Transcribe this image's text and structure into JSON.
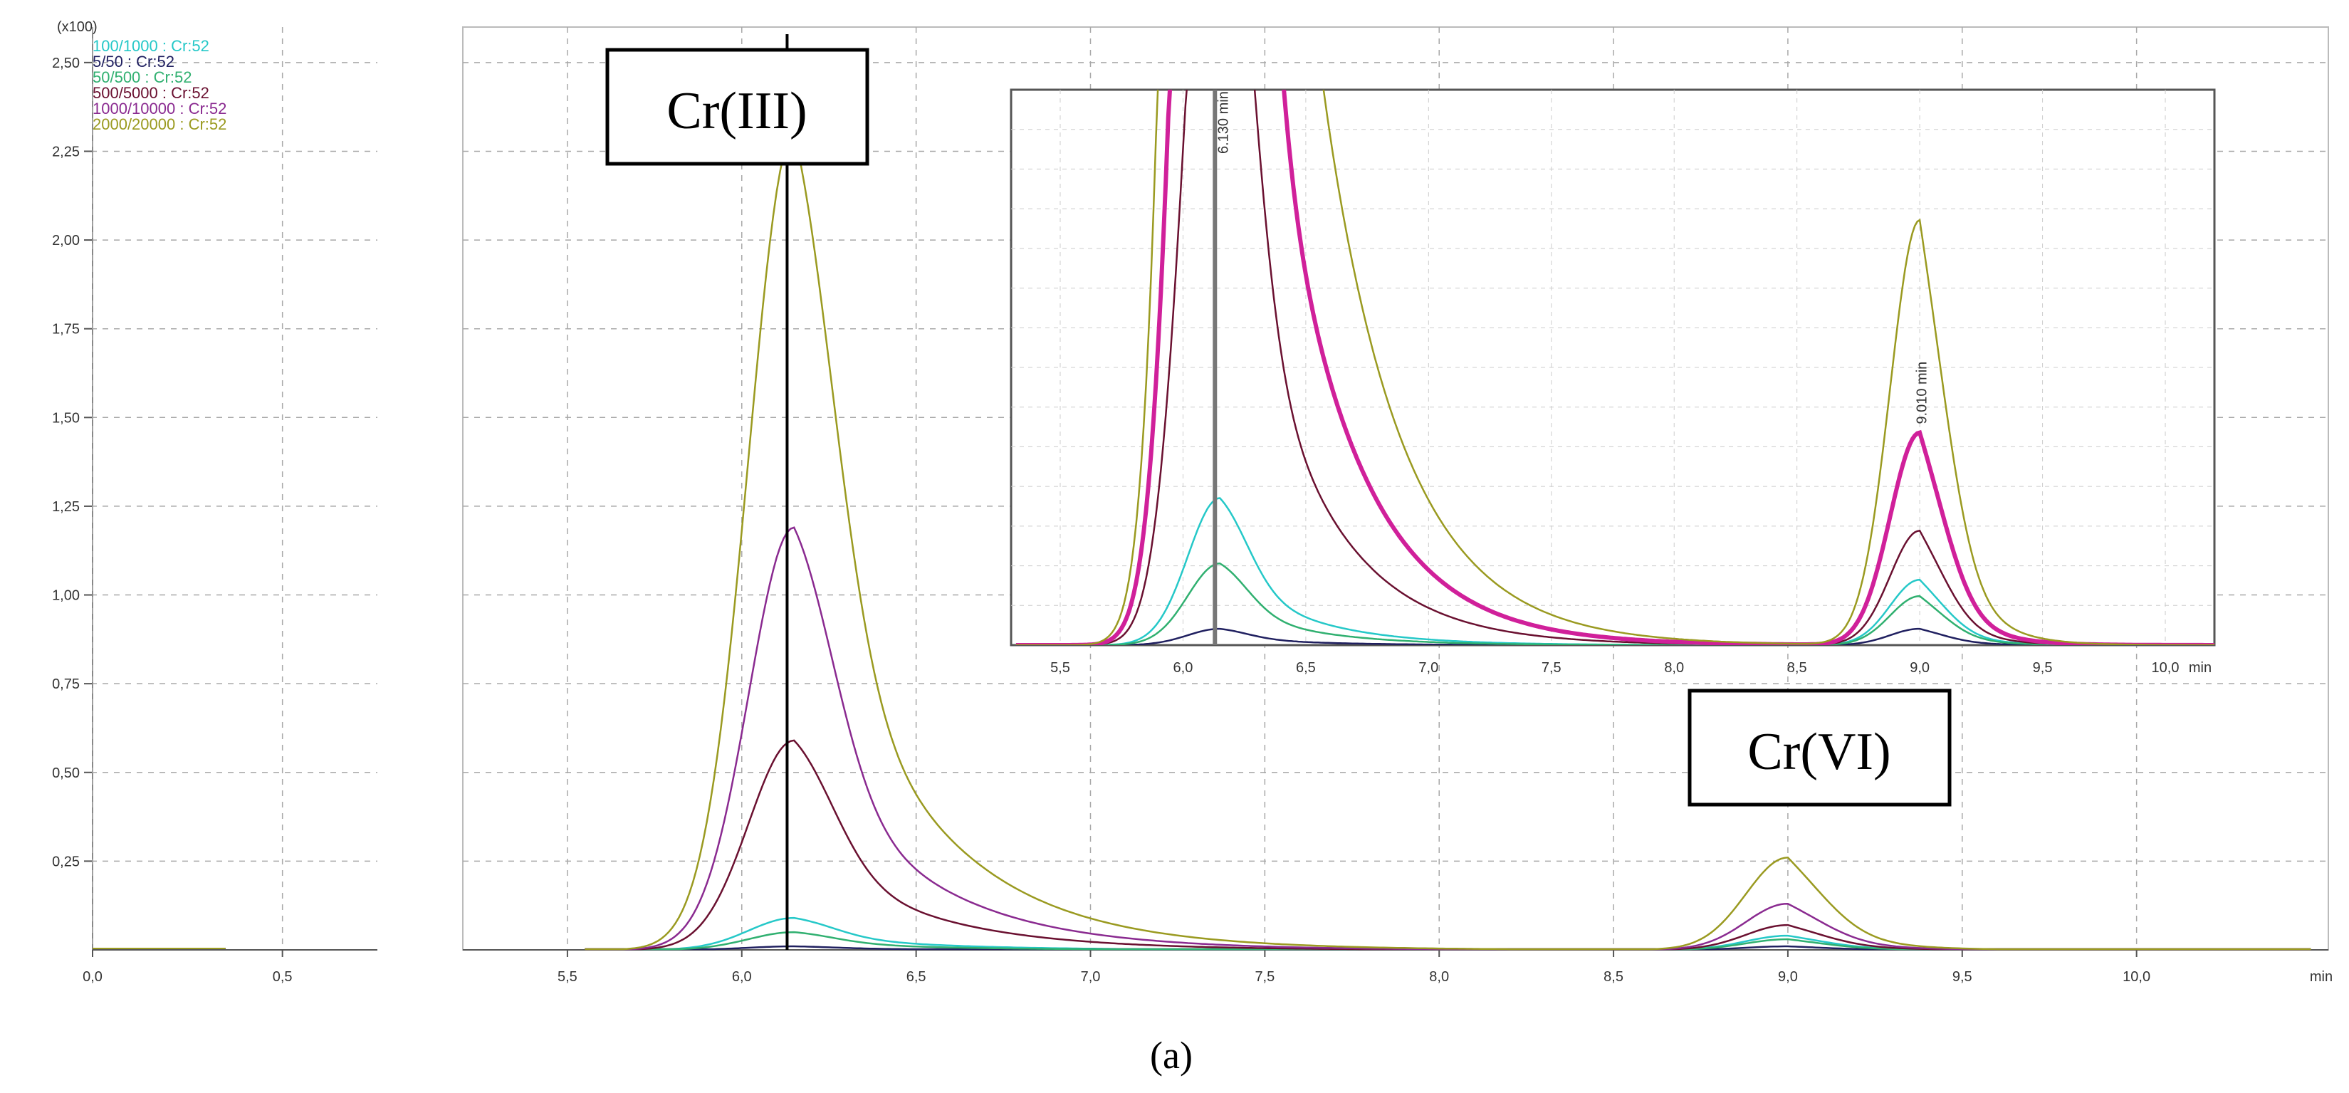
{
  "chart_data": {
    "type": "line",
    "caption": "(a)",
    "y_multiplier_label": "(x100)",
    "xlabel": "min",
    "ylabel": "",
    "left_panel": {
      "xlim": [
        0.0,
        0.75
      ],
      "xticks": [
        "0,0",
        "0,5"
      ],
      "xtick_values": [
        0.0,
        0.5
      ]
    },
    "xlim": [
      5.2,
      10.55
    ],
    "ylim": [
      0,
      2.6
    ],
    "xticks": [
      "5,5",
      "6,0",
      "6,5",
      "7,0",
      "7,5",
      "8,0",
      "8,5",
      "9,0",
      "9,5",
      "10,0"
    ],
    "xtick_values": [
      5.5,
      6.0,
      6.5,
      7.0,
      7.5,
      8.0,
      8.5,
      9.0,
      9.5,
      10.0
    ],
    "yticks": [
      "0,25",
      "0,50",
      "0,75",
      "1,00",
      "1,25",
      "1,50",
      "1,75",
      "2,00",
      "2,25",
      "2,50"
    ],
    "ytick_values": [
      0.25,
      0.5,
      0.75,
      1.0,
      1.25,
      1.5,
      1.75,
      2.0,
      2.25,
      2.5
    ],
    "grid": true,
    "legend_position": "top-left",
    "series": [
      {
        "name": "100/1000 : Cr:52",
        "color": "#25c8c8",
        "peak1": 0.09,
        "peak2": 0.04
      },
      {
        "name": "5/50 : Cr:52",
        "color": "#202060",
        "peak1": 0.01,
        "peak2": 0.01
      },
      {
        "name": "50/500 : Cr:52",
        "color": "#30b070",
        "peak1": 0.05,
        "peak2": 0.03
      },
      {
        "name": "500/5000 : Cr:52",
        "color": "#6a1030",
        "peak1": 0.59,
        "peak2": 0.07
      },
      {
        "name": "1000/10000 : Cr:52",
        "color": "#8a2a90",
        "peak1": 1.19,
        "peak2": 0.13
      },
      {
        "name": "2000/20000 : Cr:52",
        "color": "#9a9a20",
        "peak1": 2.3,
        "peak2": 0.26
      }
    ],
    "peak1_center": 6.15,
    "peak2_center": 9.0,
    "marker_x": 6.13,
    "annotations": [
      "Cr(III)",
      "Cr(VI)"
    ],
    "inset": {
      "xlim": [
        5.3,
        10.2
      ],
      "xticks": [
        "5,5",
        "6,0",
        "6,5",
        "7,0",
        "7,5",
        "8,0",
        "8,5",
        "9,0",
        "9,5",
        "10,0",
        "min"
      ],
      "xtick_values": [
        5.5,
        6.0,
        6.5,
        7.0,
        7.5,
        8.0,
        8.5,
        9.0,
        9.5,
        10.0
      ],
      "marker_x": 6.13,
      "marker_label": "6.130 min",
      "peak_label": "9.010 min",
      "highlight_series": "1000/10000 : Cr:52"
    }
  }
}
